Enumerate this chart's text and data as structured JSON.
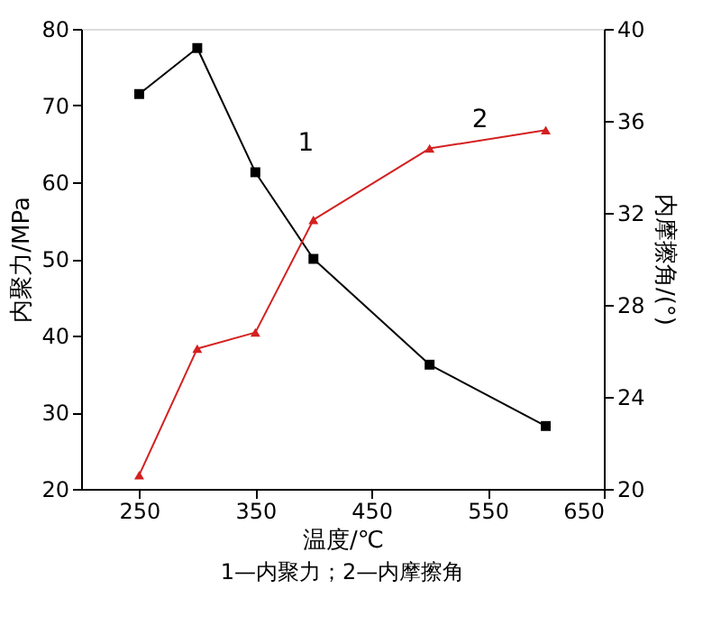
{
  "chart_data": {
    "type": "line",
    "xlabel": "温度/℃",
    "ylabel": "内聚力/MPa",
    "y2label": "内摩擦角/(°)",
    "x": [
      250,
      300,
      350,
      400,
      500,
      600
    ],
    "series": [
      {
        "name": "1",
        "color": "#000000",
        "marker": "square",
        "values": [
          71.5,
          77.5,
          61.3,
          50.0,
          36.2,
          28.2
        ]
      },
      {
        "name": "2",
        "color": "#d42020",
        "marker": "triangle",
        "axis": "y2",
        "values": [
          20.6,
          26.1,
          26.8,
          31.7,
          34.8,
          35.6
        ]
      }
    ],
    "xlim": [
      200,
      650
    ],
    "xticks": [
      250,
      350,
      450,
      550,
      650
    ],
    "ylim": [
      20,
      80
    ],
    "yticks": [
      20,
      30,
      40,
      50,
      60,
      70,
      80
    ],
    "y2lim": [
      20,
      40
    ],
    "y2ticks": [
      20,
      24,
      28,
      32,
      36,
      40
    ],
    "grid": false,
    "line_style": "solid",
    "annotations": [
      "1—内聚力；2—内摩擦角"
    ]
  }
}
